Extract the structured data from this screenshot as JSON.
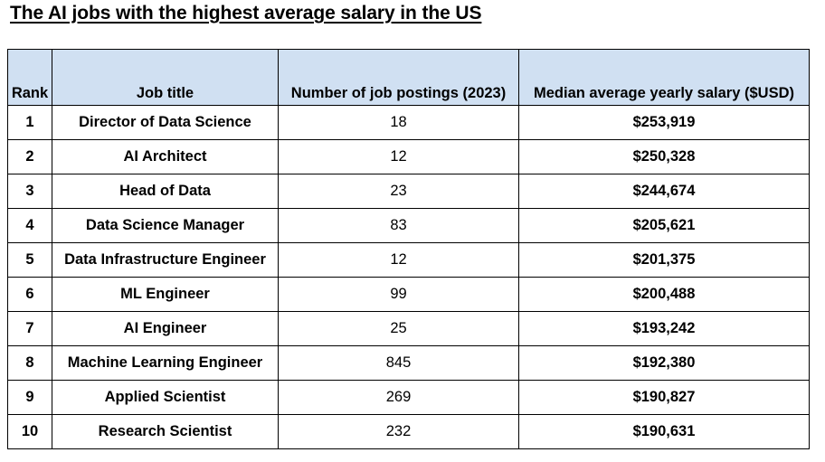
{
  "title": "The AI jobs with the highest average salary in the US",
  "table": {
    "headers": {
      "rank": "Rank",
      "job_title": "Job title",
      "postings": "Number of job postings (2023)",
      "salary": "Median average yearly salary ($USD)"
    },
    "rows": [
      {
        "rank": "1",
        "job_title": "Director of Data Science",
        "postings": "18",
        "salary": "$253,919"
      },
      {
        "rank": "2",
        "job_title": "AI Architect",
        "postings": "12",
        "salary": "$250,328"
      },
      {
        "rank": "3",
        "job_title": "Head of Data",
        "postings": "23",
        "salary": "$244,674"
      },
      {
        "rank": "4",
        "job_title": "Data Science Manager",
        "postings": "83",
        "salary": "$205,621"
      },
      {
        "rank": "5",
        "job_title": "Data Infrastructure Engineer",
        "postings": "12",
        "salary": "$201,375"
      },
      {
        "rank": "6",
        "job_title": "ML Engineer",
        "postings": "99",
        "salary": "$200,488"
      },
      {
        "rank": "7",
        "job_title": "AI Engineer",
        "postings": "25",
        "salary": "$193,242"
      },
      {
        "rank": "8",
        "job_title": "Machine Learning Engineer",
        "postings": "845",
        "salary": "$192,380"
      },
      {
        "rank": "9",
        "job_title": "Applied Scientist",
        "postings": "269",
        "salary": "$190,827"
      },
      {
        "rank": "10",
        "job_title": "Research Scientist",
        "postings": "232",
        "salary": "$190,631"
      }
    ]
  },
  "colors": {
    "header_background": "#d0e0f2",
    "border": "#000000",
    "text": "#000000"
  }
}
